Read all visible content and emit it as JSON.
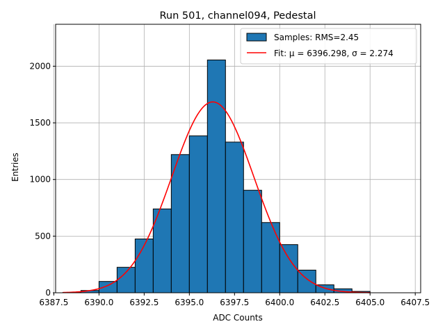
{
  "chart_data": {
    "type": "bar",
    "title": "Run 501, channel094, Pedestal",
    "xlabel": "ADC Counts",
    "ylabel": "Entries",
    "xlim": [
      6387.6,
      6407.8
    ],
    "ylim": [
      0,
      2370
    ],
    "grid": true,
    "x_ticks": [
      6387.5,
      6390.0,
      6392.5,
      6395.0,
      6397.5,
      6400.0,
      6402.5,
      6405.0,
      6407.5
    ],
    "x_tick_labels": [
      "6387.5",
      "6390.0",
      "6392.5",
      "6395.0",
      "6397.5",
      "6400.0",
      "6402.5",
      "6405.0",
      "6407.5"
    ],
    "y_ticks": [
      0,
      500,
      1000,
      1500,
      2000
    ],
    "y_tick_labels": [
      "0",
      "500",
      "1000",
      "1500",
      "2000"
    ],
    "bins": [
      {
        "left": 6388,
        "right": 6389,
        "value": 3
      },
      {
        "left": 6389,
        "right": 6390,
        "value": 20
      },
      {
        "left": 6390,
        "right": 6391,
        "value": 100
      },
      {
        "left": 6391,
        "right": 6392,
        "value": 225
      },
      {
        "left": 6392,
        "right": 6393,
        "value": 475
      },
      {
        "left": 6393,
        "right": 6394,
        "value": 740
      },
      {
        "left": 6394,
        "right": 6395,
        "value": 1220
      },
      {
        "left": 6395,
        "right": 6396,
        "value": 1385
      },
      {
        "left": 6396,
        "right": 6397,
        "value": 2055
      },
      {
        "left": 6397,
        "right": 6398,
        "value": 1330
      },
      {
        "left": 6398,
        "right": 6399,
        "value": 905
      },
      {
        "left": 6399,
        "right": 6400,
        "value": 620
      },
      {
        "left": 6400,
        "right": 6401,
        "value": 425
      },
      {
        "left": 6401,
        "right": 6402,
        "value": 200
      },
      {
        "left": 6402,
        "right": 6403,
        "value": 70
      },
      {
        "left": 6403,
        "right": 6404,
        "value": 35
      },
      {
        "left": 6404,
        "right": 6405,
        "value": 12
      }
    ],
    "fit": {
      "mu": 6396.298,
      "sigma": 2.274,
      "amplitude": 1685,
      "x_range": [
        6388,
        6405
      ]
    },
    "series": [
      {
        "name": "Samples: RMS=2.45",
        "kind": "histogram",
        "color": "#1f77b4"
      },
      {
        "name": "Fit: μ = 6396.298, σ = 2.274",
        "kind": "line",
        "color": "#ff0000"
      }
    ],
    "legend": {
      "placement": "top-right",
      "entries": [
        "Samples: RMS=2.45",
        "Fit: μ = 6396.298, σ = 2.274"
      ]
    }
  }
}
